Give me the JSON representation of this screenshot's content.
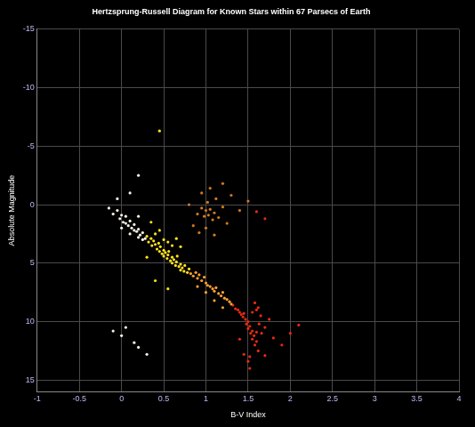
{
  "chart_data": {
    "type": "scatter",
    "title": "Hertzsprung-Russell Diagram for Known Stars within 67 Parsecs of Earth",
    "x_label": "B-V Index",
    "y_label": "Absolute Magnitude",
    "xlim": [
      -1,
      4
    ],
    "xticks": [
      -1,
      -0.5,
      0,
      0.5,
      1,
      1.5,
      2,
      2.5,
      3,
      3.5,
      4
    ],
    "ylim": [
      -15,
      16
    ],
    "yticks": [
      -15,
      -10,
      -5,
      0,
      5,
      10,
      15
    ],
    "grid": true,
    "series": [
      {
        "color": "#f4f0e0",
        "x": [
          -0.15,
          -0.1,
          -0.05,
          -0.02,
          0,
          0.02,
          0.05,
          0.08,
          0.1,
          0.12,
          0.15,
          0.18,
          0.2,
          0.22,
          0.25,
          0.28,
          0,
          0.05,
          0.1,
          0.15,
          0.2,
          0.25,
          -0.05,
          0.1,
          0.2,
          0.2,
          -0.1,
          0,
          0.05,
          0.15,
          0.2,
          0.3
        ],
        "values": [
          0.3,
          0.8,
          0.5,
          1.2,
          0.9,
          1.5,
          1.0,
          1.8,
          1.4,
          2.0,
          1.7,
          2.3,
          2.1,
          2.6,
          2.4,
          2.9,
          2.0,
          1.6,
          2.5,
          2.2,
          2.8,
          3.0,
          -0.5,
          -1.0,
          1.0,
          -2.5,
          10.8,
          11.2,
          10.5,
          11.8,
          12.2,
          12.8
        ]
      },
      {
        "color": "#ffe21a",
        "x": [
          0.3,
          0.32,
          0.35,
          0.36,
          0.38,
          0.4,
          0.4,
          0.42,
          0.44,
          0.45,
          0.46,
          0.48,
          0.5,
          0.5,
          0.52,
          0.54,
          0.55,
          0.56,
          0.58,
          0.6,
          0.6,
          0.62,
          0.64,
          0.65,
          0.66,
          0.68,
          0.7,
          0.7,
          0.72,
          0.74,
          0.75,
          0.78,
          0.8,
          0.5,
          0.55,
          0.6,
          0.45,
          0.35,
          0.4,
          0.55,
          0.3,
          0.7,
          0.65,
          0.45
        ],
        "values": [
          2.7,
          3.2,
          2.9,
          3.5,
          3.1,
          3.4,
          2.5,
          3.8,
          3.3,
          4.0,
          3.6,
          4.2,
          3.9,
          4.4,
          4.1,
          4.6,
          4.3,
          4.0,
          4.8,
          4.5,
          5.0,
          4.7,
          5.2,
          4.9,
          4.4,
          5.3,
          5.1,
          5.6,
          5.4,
          5.7,
          5.2,
          5.8,
          5.5,
          3.0,
          3.2,
          3.5,
          2.2,
          1.5,
          6.5,
          7.2,
          4.5,
          3.6,
          2.9,
          -6.3
        ]
      },
      {
        "color": "#ffa030",
        "x": [
          0.82,
          0.85,
          0.88,
          0.9,
          0.92,
          0.95,
          0.98,
          1.0,
          1.02,
          1.05,
          1.08,
          1.1,
          1.12,
          1.15,
          1.18,
          1.2,
          1.22,
          1.25,
          1.28,
          1.3,
          0.9,
          1.0,
          1.1,
          1.2
        ],
        "values": [
          5.9,
          6.1,
          5.8,
          6.3,
          6.0,
          6.5,
          6.2,
          6.7,
          6.9,
          7.0,
          7.2,
          7.4,
          7.1,
          7.6,
          7.8,
          7.5,
          8.0,
          8.1,
          8.3,
          8.5,
          7.0,
          7.5,
          8.2,
          8.8
        ]
      },
      {
        "color": "#d07a20",
        "x": [
          0.9,
          0.95,
          0.98,
          1.0,
          1.02,
          1.03,
          1.05,
          1.08,
          1.1,
          1.12,
          1.15,
          1.2,
          1.25,
          1.3,
          0.85,
          0.92,
          1.0,
          1.1,
          0.95,
          1.4,
          1.5,
          1.05,
          1.2,
          0.8
        ],
        "values": [
          0.8,
          0.3,
          1.0,
          0.5,
          -0.2,
          0.9,
          0.4,
          1.3,
          0.7,
          -0.5,
          1.1,
          0.2,
          1.6,
          -0.8,
          1.8,
          2.4,
          2.0,
          2.6,
          -1.0,
          0.5,
          -0.3,
          -1.4,
          -1.8,
          0.0
        ]
      },
      {
        "color": "#e82a10",
        "x": [
          1.32,
          1.35,
          1.38,
          1.4,
          1.42,
          1.44,
          1.45,
          1.47,
          1.48,
          1.5,
          1.5,
          1.52,
          1.53,
          1.55,
          1.55,
          1.57,
          1.58,
          1.6,
          1.62,
          1.6,
          1.58,
          1.62,
          1.65,
          1.63,
          1.6,
          1.55,
          1.66,
          1.7,
          1.75,
          1.8,
          1.9,
          2.0,
          1.45,
          1.5,
          1.52,
          1.7,
          1.4,
          2.1,
          1.52,
          1.6,
          1.7
        ],
        "values": [
          8.6,
          8.9,
          9.0,
          9.2,
          9.4,
          9.6,
          9.3,
          9.8,
          10.2,
          10.0,
          10.6,
          10.4,
          11.0,
          10.8,
          11.5,
          11.2,
          12.0,
          11.7,
          12.5,
          9.0,
          8.4,
          8.8,
          9.5,
          10.2,
          10.9,
          9.2,
          11.0,
          10.5,
          9.8,
          11.4,
          12.0,
          11.0,
          12.8,
          13.4,
          13.0,
          12.9,
          11.5,
          10.3,
          14.0,
          0.6,
          1.2
        ]
      }
    ]
  }
}
